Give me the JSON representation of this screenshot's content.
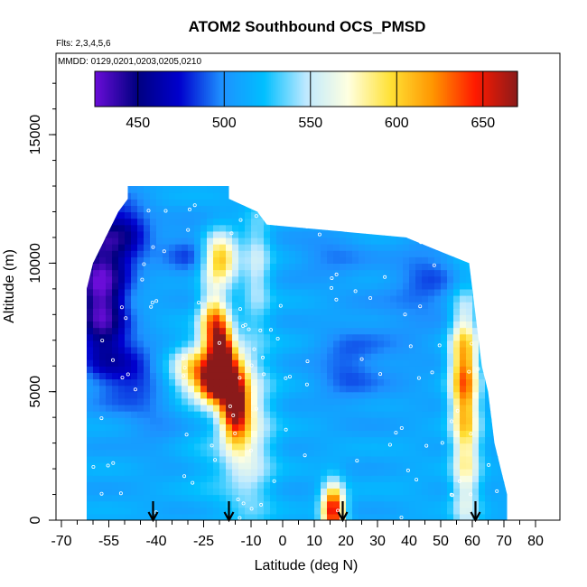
{
  "chart_data": {
    "type": "heatmap",
    "title": "ATOM2 Southbound OCS_PMSD",
    "subtitle_flights": "Flts: 2,3,4,5,6",
    "subtitle_dates": "MMDD: 0129,0201,0203,0205,0210",
    "xlabel": "Latitude (deg N)",
    "ylabel": "Altitude (m)",
    "xlim": [
      -70,
      80
    ],
    "ylim": [
      0,
      17500
    ],
    "x_ticks": [
      -70,
      -55,
      -40,
      -25,
      -10,
      0,
      10,
      20,
      30,
      40,
      50,
      60,
      70,
      80
    ],
    "y_ticks": [
      0,
      5000,
      10000,
      15000
    ],
    "colorbar": {
      "range": [
        425,
        670
      ],
      "ticks": [
        450,
        500,
        550,
        600,
        650
      ],
      "colors": [
        "#6a0dd8",
        "#000080",
        "#0000cd",
        "#1e90ff",
        "#00bfff",
        "#bfe9ff",
        "#ffffe0",
        "#ffe135",
        "#ff9500",
        "#ff1a00",
        "#8b1a1a"
      ]
    },
    "arrows_latitude": [
      -41,
      -17,
      19,
      61
    ],
    "envelope": [
      {
        "alt": 0,
        "lat_min": -62,
        "lat_max": 71
      },
      {
        "alt": 1000,
        "lat_min": -62,
        "lat_max": 71
      },
      {
        "alt": 2000,
        "lat_min": -62,
        "lat_max": 69
      },
      {
        "alt": 3000,
        "lat_min": -62,
        "lat_max": 67
      },
      {
        "alt": 4000,
        "lat_min": -62,
        "lat_max": 66
      },
      {
        "alt": 5000,
        "lat_min": -62,
        "lat_max": 65
      },
      {
        "alt": 6000,
        "lat_min": -62,
        "lat_max": 63
      },
      {
        "alt": 7000,
        "lat_min": -62,
        "lat_max": 62
      },
      {
        "alt": 8000,
        "lat_min": -62,
        "lat_max": 61
      },
      {
        "alt": 9000,
        "lat_min": -62,
        "lat_max": 60
      },
      {
        "alt": 10000,
        "lat_min": -60,
        "lat_max": 59
      },
      {
        "alt": 10500,
        "lat_min": -58,
        "lat_max": 49
      },
      {
        "alt": 11000,
        "lat_min": -56,
        "lat_max": 39
      },
      {
        "alt": 11500,
        "lat_min": -54,
        "lat_max": -5
      },
      {
        "alt": 12000,
        "lat_min": -52,
        "lat_max": -8
      },
      {
        "alt": 12500,
        "lat_min": -49,
        "lat_max": -17
      }
    ],
    "features": [
      {
        "lat": -58,
        "alt": 9500,
        "sx": 6,
        "sy": 1600,
        "value": 448
      },
      {
        "lat": -57,
        "alt": 7500,
        "sx": 5,
        "sy": 1500,
        "value": 470
      },
      {
        "lat": -50,
        "alt": 11200,
        "sx": 6,
        "sy": 900,
        "value": 470
      },
      {
        "lat": -48,
        "alt": 5800,
        "sx": 6,
        "sy": 1000,
        "value": 480
      },
      {
        "lat": -28,
        "alt": 10400,
        "sx": 7,
        "sy": 700,
        "value": 485
      },
      {
        "lat": 20,
        "alt": 6000,
        "sx": 7,
        "sy": 1000,
        "value": 490
      },
      {
        "lat": 46,
        "alt": 9400,
        "sx": 7,
        "sy": 1000,
        "value": 490
      },
      {
        "lat": 15,
        "alt": 10300,
        "sx": 8,
        "sy": 700,
        "value": 496
      },
      {
        "lat": -40,
        "alt": 4000,
        "sx": 6,
        "sy": 1000,
        "value": 500
      },
      {
        "lat": 35,
        "alt": 7000,
        "sx": 10,
        "sy": 1800,
        "value": 503
      },
      {
        "lat": -20,
        "alt": 2500,
        "sx": 7,
        "sy": 1500,
        "value": 526
      },
      {
        "lat": -10,
        "alt": 3500,
        "sx": 5,
        "sy": 2500,
        "value": 555
      },
      {
        "lat": 40,
        "alt": 1500,
        "sx": 6,
        "sy": 1200,
        "value": 514
      },
      {
        "lat": 58,
        "alt": 3500,
        "sx": 3,
        "sy": 3000,
        "value": 585
      },
      {
        "lat": 57,
        "alt": 6000,
        "sx": 3,
        "sy": 1500,
        "value": 580
      },
      {
        "lat": -8,
        "alt": 10000,
        "sx": 3,
        "sy": 1500,
        "value": 550
      },
      {
        "lat": -14,
        "alt": 4500,
        "sx": 3,
        "sy": 1200,
        "value": 578
      },
      {
        "lat": -20,
        "alt": 10200,
        "sx": 4,
        "sy": 700,
        "value": 620
      },
      {
        "lat": -22,
        "alt": 7600,
        "sx": 3,
        "sy": 900,
        "value": 618
      },
      {
        "lat": -19,
        "alt": 6400,
        "sx": 2.5,
        "sy": 900,
        "value": 638
      },
      {
        "lat": -26,
        "alt": 5800,
        "sx": 6,
        "sy": 700,
        "value": 612
      },
      {
        "lat": -22,
        "alt": 5300,
        "sx": 3,
        "sy": 500,
        "value": 615
      },
      {
        "lat": -16,
        "alt": 4700,
        "sx": 3,
        "sy": 1000,
        "value": 612
      },
      {
        "lat": 16,
        "alt": 400,
        "sx": 2.5,
        "sy": 700,
        "value": 660
      }
    ]
  }
}
